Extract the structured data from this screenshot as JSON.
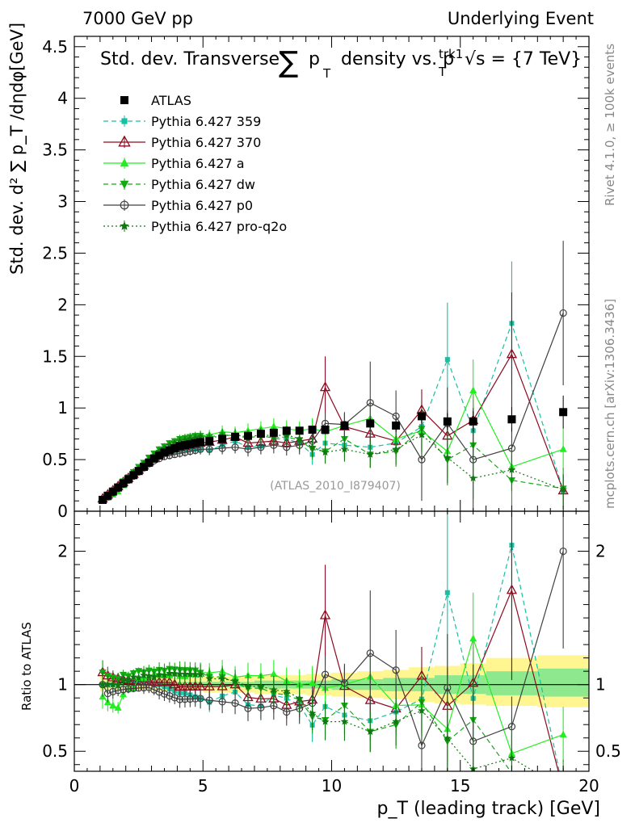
{
  "header": {
    "left": "7000 GeV pp",
    "right": "Underlying Event"
  },
  "title": {
    "text": "Std. dev. Transverse",
    "sum": "∑",
    "p": "p",
    "T": "T",
    "mid": "density vs. p",
    "trk1": "trk1",
    "sqrt": "√s = {7 TeV}"
  },
  "side": {
    "rivet": "Rivet 4.1.0, ≥ 100k events",
    "mcplots": "mcplots.cern.ch [arXiv:1306.3436]"
  },
  "watermark": "(ATLAS_2010_I879407)",
  "axes": {
    "ylabel_main": "Std. dev. d² ∑ p_T /dηdφ[GeV]",
    "ylabel_ratio": "Ratio to ATLAS",
    "xlabel": "p_T (leading track) [GeV]",
    "xlim": [
      0,
      20
    ],
    "ylim_main": [
      0,
      4.6
    ],
    "ylim_ratio": [
      0.35,
      2.3
    ],
    "xticks": [
      "0",
      "5",
      "10",
      "15",
      "20"
    ],
    "yticks_main": [
      "0",
      "0.5",
      "1",
      "1.5",
      "2",
      "2.5",
      "3",
      "3.5",
      "4",
      "4.5"
    ],
    "yticks_ratio": [
      "0.5",
      "1",
      "2"
    ]
  },
  "chart_data": {
    "type": "scatter",
    "title": "Std. dev. Transverse ∑pT density vs. pT trk1, √s = {7 TeV}",
    "xlabel": "pT (leading track) [GeV]",
    "ylabel": "Std. dev. d²∑pT/dηdφ [GeV]",
    "x": [
      1.1,
      1.3,
      1.5,
      1.7,
      1.9,
      2.1,
      2.3,
      2.5,
      2.7,
      2.9,
      3.1,
      3.3,
      3.5,
      3.7,
      3.9,
      4.1,
      4.3,
      4.5,
      4.7,
      4.9,
      5.25,
      5.75,
      6.25,
      6.75,
      7.25,
      7.75,
      8.25,
      8.75,
      9.25,
      9.75,
      10.5,
      11.5,
      12.5,
      13.5,
      14.5,
      15.5,
      17.0,
      19.0
    ],
    "data": [
      0.11,
      0.15,
      0.19,
      0.23,
      0.27,
      0.31,
      0.35,
      0.39,
      0.43,
      0.47,
      0.51,
      0.54,
      0.57,
      0.59,
      0.61,
      0.63,
      0.64,
      0.65,
      0.66,
      0.67,
      0.68,
      0.7,
      0.72,
      0.73,
      0.75,
      0.76,
      0.78,
      0.78,
      0.79,
      0.79,
      0.83,
      0.85,
      0.83,
      0.92,
      0.87,
      0.87,
      0.89,
      0.96
    ],
    "data_err": [
      0.01,
      0.01,
      0.01,
      0.01,
      0.01,
      0.01,
      0.01,
      0.01,
      0.01,
      0.01,
      0.01,
      0.01,
      0.01,
      0.01,
      0.01,
      0.01,
      0.01,
      0.02,
      0.02,
      0.02,
      0.02,
      0.02,
      0.02,
      0.02,
      0.03,
      0.03,
      0.03,
      0.03,
      0.04,
      0.04,
      0.04,
      0.05,
      0.06,
      0.07,
      0.08,
      0.1,
      0.12,
      0.16
    ],
    "band_total": [
      [
        1.0,
        1.1,
        0.95,
        1.06
      ],
      [
        1.1,
        2.0,
        0.96,
        1.05
      ],
      [
        2.0,
        3.0,
        0.96,
        1.04
      ],
      [
        3.0,
        5.0,
        0.95,
        1.05
      ],
      [
        5.0,
        7.0,
        0.94,
        1.06
      ],
      [
        7.0,
        9.0,
        0.93,
        1.07
      ],
      [
        9.0,
        10.0,
        0.92,
        1.08
      ],
      [
        10.0,
        11.0,
        0.91,
        1.09
      ],
      [
        11.0,
        12.0,
        0.9,
        1.1
      ],
      [
        12.0,
        13.0,
        0.89,
        1.11
      ],
      [
        13.0,
        14.0,
        0.87,
        1.13
      ],
      [
        14.0,
        15.0,
        0.86,
        1.14
      ],
      [
        15.0,
        16.0,
        0.85,
        1.16
      ],
      [
        16.0,
        18.0,
        0.84,
        1.2
      ],
      [
        18.0,
        20.0,
        0.83,
        1.22
      ]
    ],
    "band_stat": [
      [
        1.0,
        3.0,
        0.99,
        1.01
      ],
      [
        3.0,
        7.0,
        0.98,
        1.02
      ],
      [
        7.0,
        10.0,
        0.97,
        1.03
      ],
      [
        10.0,
        12.0,
        0.96,
        1.04
      ],
      [
        12.0,
        14.0,
        0.95,
        1.05
      ],
      [
        14.0,
        16.0,
        0.93,
        1.07
      ],
      [
        16.0,
        18.0,
        0.92,
        1.1
      ],
      [
        18.0,
        20.0,
        0.91,
        1.12
      ]
    ],
    "legend": [
      "ATLAS",
      "Pythia 6.427 359",
      "Pythia 6.427 370",
      "Pythia 6.427 a",
      "Pythia 6.427 dw",
      "Pythia 6.427 p0",
      "Pythia 6.427 pro-q2o"
    ],
    "series": [
      {
        "name": "Pythia 6.427 359",
        "color": "#19bfa0",
        "dash": "6,4",
        "marker": "square-small",
        "values": [
          0.11,
          0.15,
          0.19,
          0.24,
          0.28,
          0.32,
          0.36,
          0.4,
          0.44,
          0.48,
          0.51,
          0.54,
          0.56,
          0.57,
          0.58,
          0.59,
          0.6,
          0.6,
          0.6,
          0.6,
          0.59,
          0.64,
          0.68,
          0.62,
          0.63,
          0.7,
          0.7,
          0.66,
          0.55,
          0.66,
          0.64,
          0.62,
          0.66,
          0.82,
          1.47,
          0.78,
          1.82,
          0.2
        ],
        "err": [
          0.01,
          0.01,
          0.01,
          0.01,
          0.01,
          0.01,
          0.01,
          0.01,
          0.02,
          0.02,
          0.02,
          0.03,
          0.03,
          0.03,
          0.03,
          0.04,
          0.04,
          0.04,
          0.04,
          0.05,
          0.05,
          0.06,
          0.06,
          0.07,
          0.07,
          0.08,
          0.08,
          0.09,
          0.1,
          0.11,
          0.12,
          0.13,
          0.15,
          0.25,
          0.55,
          0.3,
          0.6,
          0.15
        ]
      },
      {
        "name": "Pythia 6.427 370",
        "color": "#8c0a1e",
        "dash": "",
        "marker": "triangle-open",
        "values": [
          0.12,
          0.16,
          0.2,
          0.24,
          0.28,
          0.32,
          0.36,
          0.4,
          0.44,
          0.48,
          0.52,
          0.55,
          0.58,
          0.6,
          0.61,
          0.62,
          0.63,
          0.64,
          0.65,
          0.66,
          0.67,
          0.69,
          0.72,
          0.66,
          0.67,
          0.68,
          0.66,
          0.68,
          0.7,
          1.2,
          0.82,
          0.75,
          0.68,
          0.98,
          0.73,
          0.88,
          1.52,
          0.2
        ],
        "err": [
          0.01,
          0.01,
          0.01,
          0.01,
          0.01,
          0.01,
          0.01,
          0.01,
          0.02,
          0.02,
          0.02,
          0.03,
          0.03,
          0.03,
          0.03,
          0.04,
          0.04,
          0.04,
          0.04,
          0.05,
          0.05,
          0.06,
          0.06,
          0.07,
          0.07,
          0.08,
          0.08,
          0.09,
          0.1,
          0.3,
          0.12,
          0.13,
          0.15,
          0.2,
          0.25,
          0.3,
          0.6,
          0.15
        ]
      },
      {
        "name": "Pythia 6.427 a",
        "color": "#22ee22",
        "dash": "",
        "marker": "triangle-solid",
        "values": [
          0.1,
          0.13,
          0.16,
          0.19,
          0.25,
          0.3,
          0.34,
          0.41,
          0.45,
          0.5,
          0.55,
          0.58,
          0.61,
          0.63,
          0.66,
          0.67,
          0.68,
          0.7,
          0.71,
          0.73,
          0.74,
          0.77,
          0.76,
          0.78,
          0.8,
          0.82,
          0.8,
          0.78,
          0.8,
          0.77,
          0.83,
          0.9,
          0.7,
          0.78,
          0.58,
          1.17,
          0.43,
          0.6
        ],
        "err": [
          0.01,
          0.01,
          0.01,
          0.01,
          0.01,
          0.01,
          0.01,
          0.01,
          0.02,
          0.02,
          0.02,
          0.03,
          0.03,
          0.03,
          0.03,
          0.04,
          0.04,
          0.04,
          0.04,
          0.05,
          0.05,
          0.06,
          0.06,
          0.07,
          0.07,
          0.08,
          0.08,
          0.09,
          0.1,
          0.11,
          0.12,
          0.13,
          0.15,
          0.2,
          0.25,
          0.3,
          0.25,
          0.2
        ]
      },
      {
        "name": "Pythia 6.427 dw",
        "color": "#11aa11",
        "dash": "6,4",
        "marker": "triangle-down",
        "values": [
          0.12,
          0.16,
          0.2,
          0.24,
          0.29,
          0.33,
          0.38,
          0.43,
          0.47,
          0.52,
          0.56,
          0.6,
          0.63,
          0.66,
          0.68,
          0.7,
          0.71,
          0.72,
          0.73,
          0.73,
          0.72,
          0.74,
          0.73,
          0.71,
          0.73,
          0.71,
          0.72,
          0.69,
          0.6,
          0.58,
          0.7,
          0.55,
          0.58,
          0.8,
          0.5,
          0.64,
          0.3,
          0.22
        ],
        "err": [
          0.01,
          0.01,
          0.01,
          0.01,
          0.01,
          0.01,
          0.01,
          0.01,
          0.02,
          0.02,
          0.02,
          0.03,
          0.03,
          0.03,
          0.03,
          0.04,
          0.04,
          0.04,
          0.04,
          0.05,
          0.05,
          0.06,
          0.06,
          0.07,
          0.07,
          0.08,
          0.08,
          0.09,
          0.1,
          0.11,
          0.12,
          0.13,
          0.15,
          0.2,
          0.25,
          0.3,
          0.25,
          0.2
        ]
      },
      {
        "name": "Pythia 6.427 p0",
        "color": "#404040",
        "dash": "",
        "marker": "circle-open",
        "values": [
          0.11,
          0.14,
          0.18,
          0.22,
          0.26,
          0.3,
          0.34,
          0.38,
          0.42,
          0.46,
          0.49,
          0.51,
          0.53,
          0.54,
          0.55,
          0.56,
          0.57,
          0.58,
          0.59,
          0.6,
          0.6,
          0.61,
          0.62,
          0.6,
          0.62,
          0.64,
          0.62,
          0.64,
          0.68,
          0.85,
          0.84,
          1.05,
          0.92,
          0.5,
          0.85,
          0.5,
          0.61,
          1.92
        ],
        "err": [
          0.01,
          0.01,
          0.01,
          0.01,
          0.01,
          0.01,
          0.01,
          0.01,
          0.02,
          0.02,
          0.02,
          0.03,
          0.03,
          0.03,
          0.03,
          0.04,
          0.04,
          0.04,
          0.04,
          0.05,
          0.05,
          0.06,
          0.06,
          0.07,
          0.07,
          0.08,
          0.08,
          0.09,
          0.1,
          0.11,
          0.12,
          0.4,
          0.25,
          0.4,
          0.35,
          0.5,
          0.2,
          0.7
        ]
      },
      {
        "name": "Pythia 6.427 pro-q2o",
        "color": "#117711",
        "dash": "2,3",
        "marker": "star",
        "values": [
          0.11,
          0.15,
          0.19,
          0.23,
          0.28,
          0.32,
          0.37,
          0.41,
          0.46,
          0.5,
          0.54,
          0.58,
          0.61,
          0.64,
          0.66,
          0.68,
          0.69,
          0.7,
          0.71,
          0.72,
          0.71,
          0.73,
          0.74,
          0.72,
          0.74,
          0.73,
          0.74,
          0.7,
          0.62,
          0.57,
          0.6,
          0.55,
          0.6,
          0.74,
          0.52,
          0.32,
          0.4,
          0.21
        ],
        "err": [
          0.01,
          0.01,
          0.01,
          0.01,
          0.01,
          0.01,
          0.01,
          0.01,
          0.02,
          0.02,
          0.02,
          0.03,
          0.03,
          0.03,
          0.03,
          0.04,
          0.04,
          0.04,
          0.04,
          0.05,
          0.05,
          0.06,
          0.06,
          0.07,
          0.07,
          0.08,
          0.08,
          0.09,
          0.1,
          0.11,
          0.12,
          0.13,
          0.15,
          0.2,
          0.25,
          0.2,
          0.2,
          0.15
        ]
      }
    ]
  }
}
